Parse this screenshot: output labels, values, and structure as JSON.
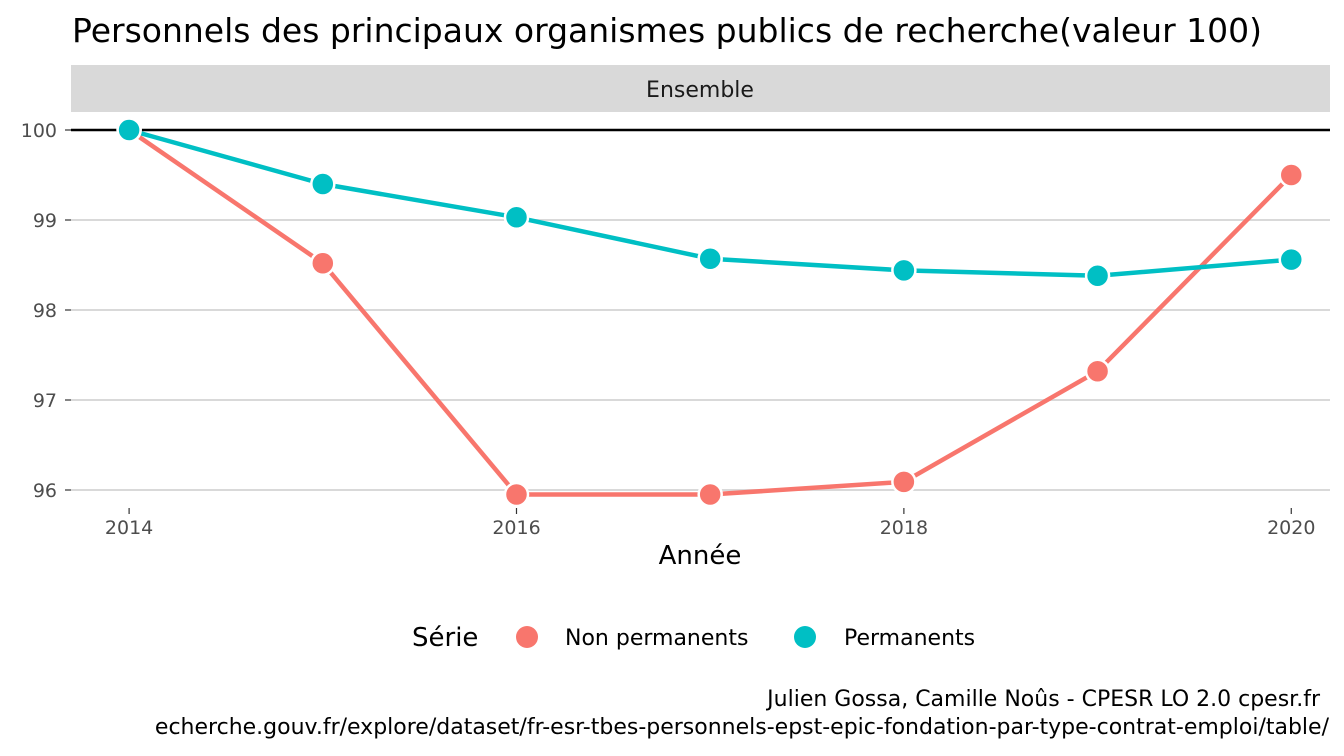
{
  "chart_data": {
    "type": "line",
    "title": "Personnels des principaux organismes publics de recherche(valeur 100)",
    "facet": "Ensemble",
    "xlabel": "Année",
    "ylabel": "",
    "x": [
      2014,
      2015,
      2016,
      2017,
      2018,
      2019,
      2020
    ],
    "x_ticks": [
      "2014",
      "2016",
      "2018",
      "2020"
    ],
    "y_ticks": [
      "96",
      "97",
      "98",
      "99",
      "100"
    ],
    "xlim": [
      2013.7,
      2020.2
    ],
    "ylim": [
      95.8,
      100.2
    ],
    "reference_line": 100,
    "grid": true,
    "legend": {
      "title": "Série",
      "position": "bottom"
    },
    "series": [
      {
        "name": "Non permanents",
        "color": "#F8766D",
        "values": [
          100,
          98.52,
          95.95,
          95.95,
          96.09,
          97.32,
          99.5
        ]
      },
      {
        "name": "Permanents",
        "color": "#00BFC4",
        "values": [
          100,
          99.4,
          99.03,
          98.57,
          98.44,
          98.38,
          98.56
        ]
      }
    ],
    "caption": [
      "Julien Gossa, Camille Noûs - CPESR LO 2.0 cpesr.fr",
      "echerche.gouv.fr/explore/dataset/fr-esr-tbes-personnels-epst-epic-fondation-par-type-contrat-emploi/table/"
    ]
  }
}
